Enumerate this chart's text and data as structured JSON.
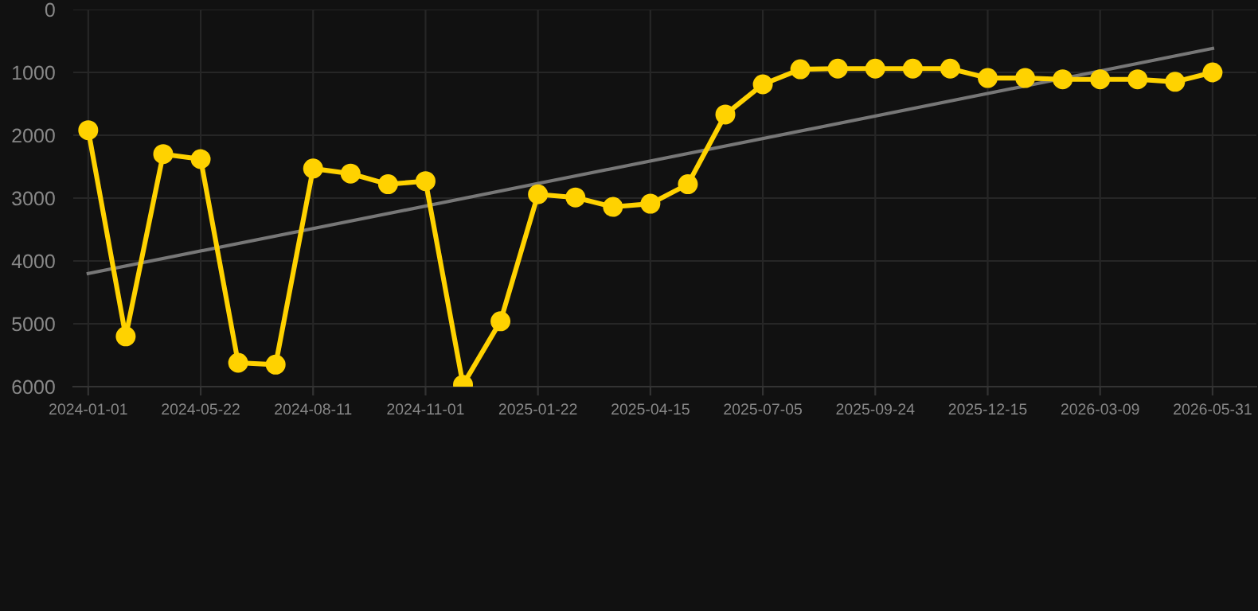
{
  "chart_data": {
    "type": "line",
    "categories": [
      "2024-01-01",
      null,
      null,
      "2024-05-22",
      null,
      null,
      "2024-08-11",
      null,
      null,
      "2024-11-01",
      null,
      null,
      "2025-01-22",
      null,
      null,
      "2025-04-15",
      null,
      null,
      "2025-07-05",
      null,
      null,
      "2025-09-24",
      null,
      null,
      "2025-12-15",
      null,
      null,
      "2026-03-09",
      null,
      null,
      "2026-05-31"
    ],
    "series": [
      {
        "color": "#ffd200",
        "marker": "circle",
        "values": [
          1920,
          5200,
          2300,
          2380,
          5620,
          5650,
          2530,
          2610,
          2780,
          2730,
          5970,
          4960,
          2940,
          2990,
          3140,
          3090,
          2780,
          1670,
          1190,
          950,
          940,
          940,
          940,
          940,
          1090,
          1090,
          1110,
          1110,
          1110,
          1150,
          1000
        ]
      },
      {
        "color": "#777777",
        "marker": "none",
        "values": [
          4200,
          null,
          null,
          null,
          null,
          null,
          null,
          null,
          null,
          null,
          null,
          null,
          null,
          null,
          null,
          null,
          null,
          null,
          null,
          null,
          null,
          null,
          null,
          null,
          null,
          null,
          null,
          null,
          null,
          null,
          620
        ]
      }
    ],
    "ylim": [
      6000,
      0
    ],
    "yticks": [
      0,
      1000,
      2000,
      3000,
      4000,
      5000,
      6000
    ],
    "grid": true,
    "legend": false
  }
}
